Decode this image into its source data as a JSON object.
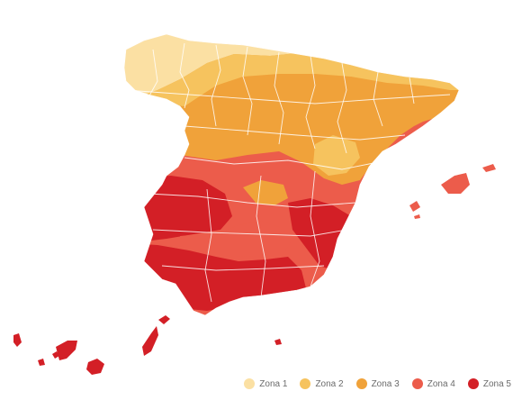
{
  "colors": {
    "zona_1": "#fbe0a3",
    "zona_2": "#f6c35e",
    "zona_3": "#f0a23a",
    "zona_4": "#ec5c4b",
    "zona_5": "#d31f26",
    "borders": "#ffffff"
  },
  "legend": {
    "items": [
      {
        "label": "Zona 1",
        "color": "#fbe0a3"
      },
      {
        "label": "Zona 2",
        "color": "#f6c35e"
      },
      {
        "label": "Zona 3",
        "color": "#f0a23a"
      },
      {
        "label": "Zona 4",
        "color": "#ec5c4b"
      },
      {
        "label": "Zona 5",
        "color": "#d31f26"
      }
    ]
  }
}
